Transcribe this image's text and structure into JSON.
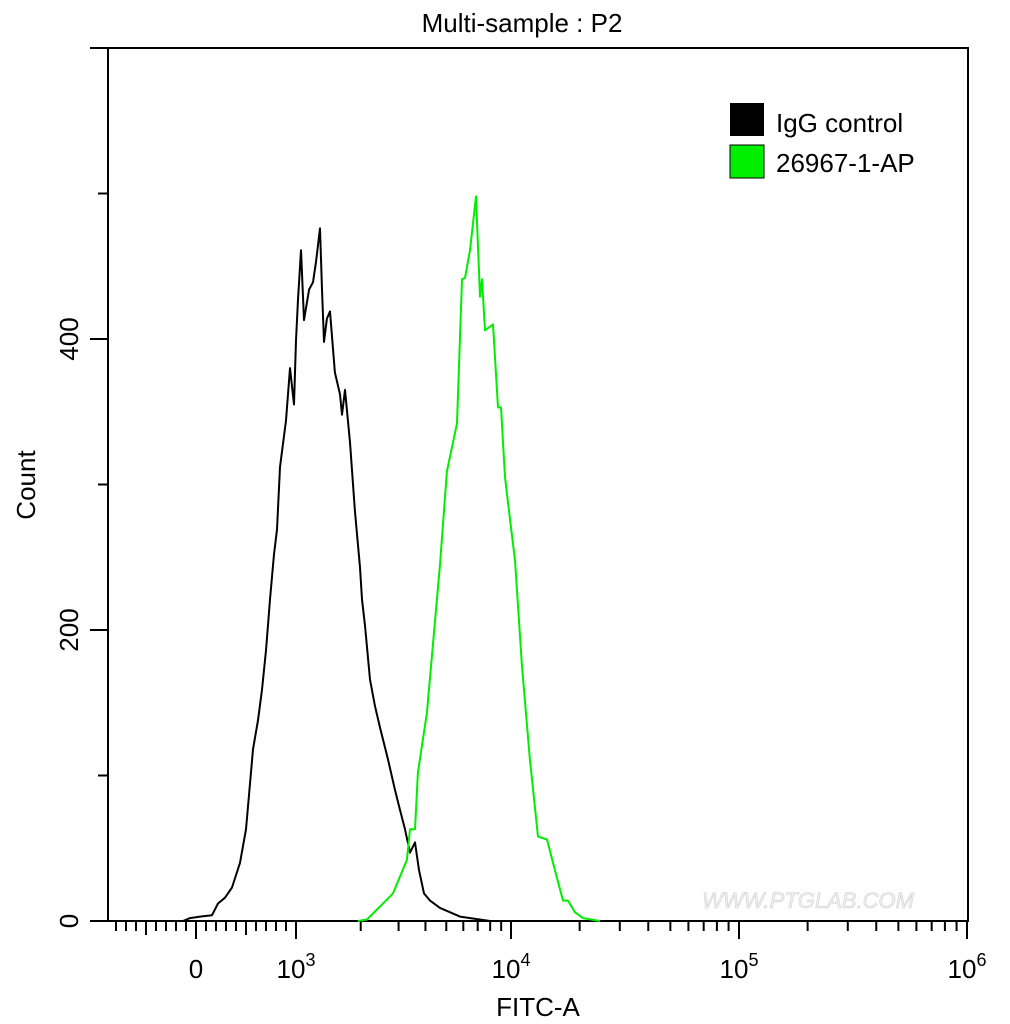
{
  "chart_data": {
    "type": "line",
    "title": "Multi-sample : P2",
    "xlabel": "FITC-A",
    "ylabel": "Count",
    "x_scale": "biexponential (linear below 10^3, log above)",
    "xlim": [
      -880,
      1000000
    ],
    "ylim": [
      0,
      600
    ],
    "x_ticks": [
      {
        "value": 0,
        "label": "0",
        "exp": ""
      },
      {
        "value": 1000,
        "label": "10",
        "exp": "3"
      },
      {
        "value": 10000,
        "label": "10",
        "exp": "4"
      },
      {
        "value": 100000,
        "label": "10",
        "exp": "5"
      },
      {
        "value": 1000000,
        "label": "10",
        "exp": "6"
      }
    ],
    "y_ticks": [
      {
        "value": 0,
        "label": "0"
      },
      {
        "value": 200,
        "label": "200"
      },
      {
        "value": 400,
        "label": "400"
      }
    ],
    "grid": false,
    "legend_position": "top-right",
    "series": [
      {
        "name": "IgG control",
        "color": "#000000",
        "points": [
          [
            -130,
            0
          ],
          [
            -60,
            2
          ],
          [
            40,
            3
          ],
          [
            160,
            4
          ],
          [
            220,
            12
          ],
          [
            290,
            16
          ],
          [
            360,
            23
          ],
          [
            440,
            40
          ],
          [
            500,
            63
          ],
          [
            570,
            118
          ],
          [
            620,
            138
          ],
          [
            660,
            159
          ],
          [
            700,
            186
          ],
          [
            740,
            221
          ],
          [
            780,
            252
          ],
          [
            810,
            269
          ],
          [
            840,
            312
          ],
          [
            900,
            344
          ],
          [
            940,
            380
          ],
          [
            980,
            355
          ],
          [
            1000,
            399
          ],
          [
            1022,
            427
          ],
          [
            1055,
            461
          ],
          [
            1089,
            413
          ],
          [
            1150,
            434
          ],
          [
            1200,
            439
          ],
          [
            1239,
            453
          ],
          [
            1293,
            476
          ],
          [
            1321,
            434
          ],
          [
            1350,
            398
          ],
          [
            1393,
            414
          ],
          [
            1439,
            419
          ],
          [
            1517,
            377
          ],
          [
            1602,
            362
          ],
          [
            1637,
            348
          ],
          [
            1690,
            365
          ],
          [
            1783,
            329
          ],
          [
            1880,
            282
          ],
          [
            1985,
            243
          ],
          [
            2028,
            221
          ],
          [
            2094,
            203
          ],
          [
            2208,
            166
          ],
          [
            2329,
            148
          ],
          [
            2459,
            133
          ],
          [
            2679,
            111
          ],
          [
            2886,
            90
          ],
          [
            3048,
            76
          ],
          [
            3215,
            63
          ],
          [
            3390,
            47
          ],
          [
            3576,
            54
          ],
          [
            3732,
            35
          ],
          [
            3938,
            19
          ],
          [
            4199,
            14
          ],
          [
            4677,
            9
          ],
          [
            5794,
            3
          ],
          [
            7983,
            0
          ]
        ]
      },
      {
        "name": "26967-1-AP",
        "color": "#00ee00",
        "points": [
          [
            1941,
            0
          ],
          [
            2138,
            1
          ],
          [
            2459,
            10
          ],
          [
            2825,
            19
          ],
          [
            3281,
            42
          ],
          [
            3390,
            63
          ],
          [
            3576,
            63
          ],
          [
            3690,
            102
          ],
          [
            4063,
            143
          ],
          [
            4677,
            245
          ],
          [
            5036,
            309
          ],
          [
            5611,
            342
          ],
          [
            5916,
            441
          ],
          [
            6107,
            442
          ],
          [
            6443,
            461
          ],
          [
            6871,
            498
          ],
          [
            7178,
            429
          ],
          [
            7331,
            441
          ],
          [
            7573,
            406
          ],
          [
            8247,
            410
          ],
          [
            8702,
            353
          ],
          [
            8986,
            353
          ],
          [
            9378,
            305
          ],
          [
            9894,
            276
          ],
          [
            10411,
            248
          ],
          [
            11175,
            175
          ],
          [
            12101,
            111
          ],
          [
            13130,
            58
          ],
          [
            14378,
            56
          ],
          [
            15586,
            35
          ],
          [
            16905,
            14
          ],
          [
            17783,
            14
          ],
          [
            19088,
            6
          ],
          [
            20700,
            2
          ],
          [
            24560,
            0
          ]
        ]
      }
    ]
  },
  "watermark": "WWW.PTGLAB.COM"
}
